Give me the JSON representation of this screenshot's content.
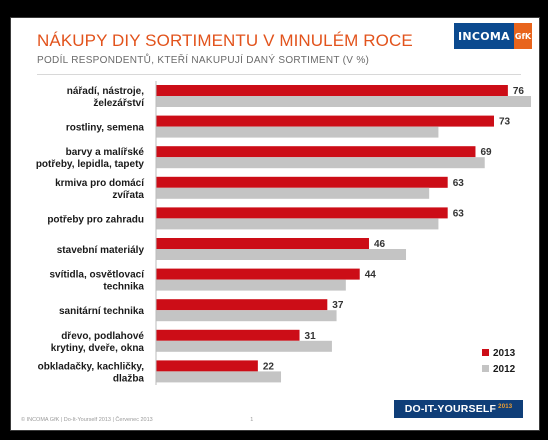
{
  "header": {
    "title": "NÁKUPY DIY SORTIMENTU V MINULÉM ROCE",
    "subtitle": "PODÍL RESPONDENTŮ, KTEŘÍ NAKUPUJÍ DANÝ SORTIMENT (V %)",
    "logo_main": "INCOMA",
    "logo_sub": "GfK"
  },
  "footer": {
    "text": "© INCOMA GfK | Do-It-Yourself 2013 | Červenec 2013",
    "page": "1",
    "badge": "DO-IT-YOURSELF",
    "badge_year": "2013"
  },
  "colors": {
    "series_2013": "#cc0d17",
    "series_2012": "#c4c4c4",
    "accent": "#e2531c"
  },
  "chart_data": {
    "type": "bar",
    "orientation": "horizontal",
    "categories": [
      [
        "nářadí, nástroje,",
        "železářství"
      ],
      [
        "rostliny, semena"
      ],
      [
        "barvy a malířské",
        "potřeby, lepidla, tapety"
      ],
      [
        "krmiva pro domácí",
        "zvířata"
      ],
      [
        "potřeby pro zahradu"
      ],
      [
        "stavební materiály"
      ],
      [
        "svítidla, osvětlovací",
        "technika"
      ],
      [
        "sanitární technika"
      ],
      [
        "dřevo, podlahové",
        "krytiny, dveře, okna"
      ],
      [
        "obkladačky, kachličky,",
        "dlažba"
      ]
    ],
    "series": [
      {
        "name": "2013",
        "values": [
          76,
          73,
          69,
          63,
          63,
          46,
          44,
          37,
          31,
          22
        ],
        "color": "#cc0d17"
      },
      {
        "name": "2012",
        "values": [
          81,
          61,
          71,
          59,
          61,
          54,
          41,
          39,
          38,
          27
        ],
        "color": "#c4c4c4"
      }
    ],
    "data_labels": "series 2013 only",
    "xlim": [
      0,
      85
    ],
    "grid": false,
    "legend": "bottom-right"
  }
}
